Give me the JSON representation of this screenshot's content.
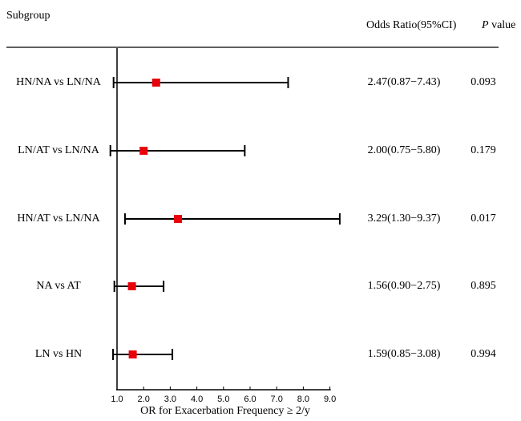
{
  "chart_data": {
    "type": "forest",
    "headers": {
      "subgroup": "Subgroup",
      "odds_ratio": "Odds Ratio(95%CI)",
      "p_value_italic": "P",
      "p_value_rest": " value"
    },
    "xlabel": "OR for Exacerbation Frequency ≥ 2/y",
    "xlim": [
      1.0,
      9.0
    ],
    "reference_line": 1.0,
    "xticks": [
      "1.0",
      "2.0",
      "3.0",
      "4.0",
      "5.0",
      "6.0",
      "7.0",
      "8.0",
      "9.0"
    ],
    "marker_color": "#e8000b",
    "rows": [
      {
        "label": "HN/NA vs LN/NA",
        "or": 2.47,
        "lower": 0.87,
        "upper": 7.43,
        "or_text": "2.47(0.87−7.43)",
        "p": "0.093"
      },
      {
        "label": "LN/AT vs LN/NA",
        "or": 2.0,
        "lower": 0.75,
        "upper": 5.8,
        "or_text": "2.00(0.75−5.80)",
        "p": "0.179"
      },
      {
        "label": "HN/AT vs LN/NA",
        "or": 3.29,
        "lower": 1.3,
        "upper": 9.37,
        "or_text": "3.29(1.30−9.37)",
        "p": "0.017"
      },
      {
        "label": "NA vs AT",
        "or": 1.56,
        "lower": 0.9,
        "upper": 2.75,
        "or_text": "1.56(0.90−2.75)",
        "p": "0.895"
      },
      {
        "label": "LN vs HN",
        "or": 1.59,
        "lower": 0.85,
        "upper": 3.08,
        "or_text": "1.59(0.85−3.08)",
        "p": "0.994"
      }
    ]
  }
}
